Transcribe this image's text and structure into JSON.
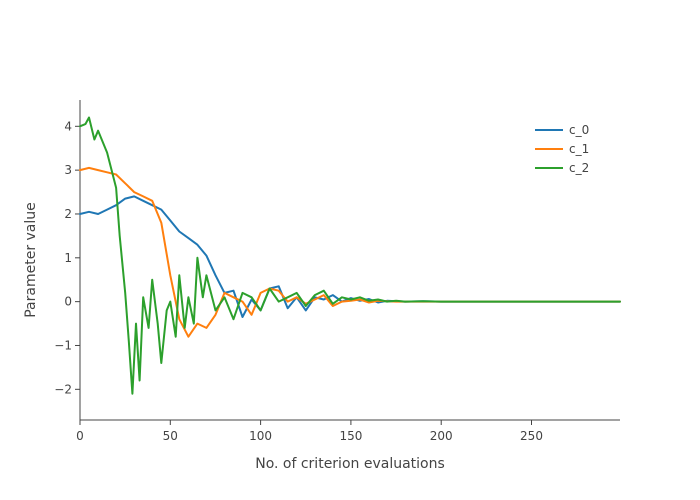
{
  "chart_data": {
    "type": "line",
    "title": "",
    "xlabel": "No. of criterion evaluations",
    "ylabel": "Parameter value",
    "xlim": [
      0,
      299
    ],
    "ylim": [
      -2.7,
      4.6
    ],
    "x_ticks": [
      0,
      50,
      100,
      150,
      200,
      250
    ],
    "y_ticks": [
      -2,
      -1,
      0,
      1,
      2,
      3,
      4
    ],
    "grid": false,
    "legend_position": "top-right",
    "series": [
      {
        "name": "c_0",
        "color": "#1f77b4",
        "x": [
          0,
          5,
          10,
          15,
          20,
          25,
          30,
          35,
          40,
          45,
          50,
          55,
          60,
          65,
          70,
          75,
          80,
          85,
          90,
          95,
          100,
          105,
          110,
          115,
          120,
          125,
          130,
          135,
          140,
          145,
          150,
          155,
          160,
          165,
          170,
          175,
          180,
          190,
          200,
          220,
          240,
          260,
          280,
          299
        ],
        "y": [
          2.0,
          2.05,
          2.0,
          2.1,
          2.2,
          2.35,
          2.4,
          2.3,
          2.2,
          2.1,
          1.85,
          1.6,
          1.45,
          1.3,
          1.05,
          0.6,
          0.2,
          0.25,
          -0.35,
          0.05,
          -0.2,
          0.3,
          0.35,
          -0.15,
          0.1,
          -0.2,
          0.1,
          0.05,
          0.15,
          0.0,
          0.08,
          0.02,
          0.06,
          -0.02,
          0.02,
          0.01,
          0.0,
          0.01,
          0.0,
          0.0,
          0.0,
          0.0,
          0.0,
          0.0
        ]
      },
      {
        "name": "c_1",
        "color": "#ff7f0e",
        "x": [
          0,
          5,
          10,
          15,
          20,
          25,
          30,
          35,
          40,
          45,
          50,
          55,
          60,
          65,
          70,
          75,
          80,
          85,
          90,
          95,
          100,
          105,
          110,
          115,
          120,
          125,
          130,
          135,
          140,
          145,
          150,
          155,
          160,
          165,
          170,
          175,
          180,
          190,
          200,
          220,
          240,
          260,
          280,
          299
        ],
        "y": [
          3.0,
          3.05,
          3.0,
          2.95,
          2.9,
          2.7,
          2.5,
          2.4,
          2.3,
          1.8,
          0.6,
          -0.4,
          -0.8,
          -0.5,
          -0.6,
          -0.3,
          0.2,
          0.1,
          0.0,
          -0.3,
          0.2,
          0.3,
          0.25,
          0.0,
          0.1,
          -0.05,
          0.05,
          0.15,
          -0.1,
          0.0,
          0.02,
          0.05,
          -0.02,
          0.02,
          0.01,
          0.0,
          0.0,
          0.0,
          0.0,
          0.0,
          0.0,
          0.0,
          0.0,
          0.0
        ]
      },
      {
        "name": "c_2",
        "color": "#2ca02c",
        "x": [
          0,
          3,
          5,
          8,
          10,
          15,
          20,
          22,
          25,
          27,
          29,
          31,
          33,
          35,
          38,
          40,
          43,
          45,
          48,
          50,
          53,
          55,
          58,
          60,
          63,
          65,
          68,
          70,
          75,
          80,
          85,
          90,
          95,
          100,
          105,
          110,
          115,
          120,
          125,
          130,
          135,
          140,
          145,
          150,
          155,
          160,
          165,
          170,
          175,
          180,
          190,
          200,
          220,
          240,
          260,
          280,
          299
        ],
        "y": [
          4.0,
          4.05,
          4.2,
          3.7,
          3.9,
          3.4,
          2.6,
          1.5,
          0.2,
          -0.9,
          -2.1,
          -0.5,
          -1.8,
          0.1,
          -0.6,
          0.5,
          -0.5,
          -1.4,
          -0.2,
          0.0,
          -0.8,
          0.6,
          -0.6,
          0.1,
          -0.5,
          1.0,
          0.1,
          0.6,
          -0.2,
          0.1,
          -0.4,
          0.2,
          0.1,
          -0.2,
          0.3,
          0.0,
          0.1,
          0.2,
          -0.1,
          0.15,
          0.25,
          -0.05,
          0.1,
          0.05,
          0.1,
          0.02,
          0.05,
          0.0,
          0.02,
          0.0,
          0.01,
          0.0,
          0.0,
          0.0,
          0.0,
          0.0,
          0.0
        ]
      }
    ]
  }
}
